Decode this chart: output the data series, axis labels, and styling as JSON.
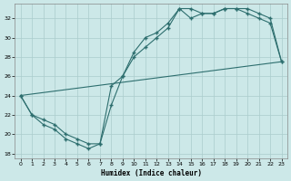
{
  "xlabel": "Humidex (Indice chaleur)",
  "background_color": "#cce8e8",
  "grid_color": "#aacccc",
  "line_color": "#2d6e6e",
  "xlim": [
    -0.5,
    23.5
  ],
  "ylim": [
    17.5,
    33.5
  ],
  "yticks": [
    18,
    20,
    22,
    24,
    26,
    28,
    30,
    32
  ],
  "xticks": [
    0,
    1,
    2,
    3,
    4,
    5,
    6,
    7,
    8,
    9,
    10,
    11,
    12,
    13,
    14,
    15,
    16,
    17,
    18,
    19,
    20,
    21,
    22,
    23
  ],
  "line1_x": [
    0,
    1,
    2,
    3,
    4,
    5,
    6,
    7,
    8,
    9,
    10,
    11,
    12,
    13,
    14,
    15,
    16,
    17,
    18,
    19,
    20,
    21,
    22,
    23
  ],
  "line1_y": [
    24,
    22,
    21,
    20.5,
    19.5,
    19,
    18.5,
    19,
    23,
    26,
    28,
    29,
    30,
    31,
    33,
    32,
    32.5,
    32.5,
    33,
    33,
    33,
    32.5,
    32,
    27.5
  ],
  "line2_x": [
    0,
    1,
    2,
    3,
    4,
    5,
    6,
    7,
    8,
    9,
    10,
    11,
    12,
    13,
    14,
    15,
    16,
    17,
    18,
    19,
    20,
    21,
    22,
    23
  ],
  "line2_y": [
    24,
    22,
    21.5,
    21,
    20,
    19.5,
    19,
    19,
    25,
    26,
    28.5,
    30,
    30.5,
    31.5,
    33,
    33,
    32.5,
    32.5,
    33,
    33,
    32.5,
    32,
    31.5,
    27.5
  ],
  "line3_x": [
    0,
    23
  ],
  "line3_y": [
    24,
    27.5
  ]
}
